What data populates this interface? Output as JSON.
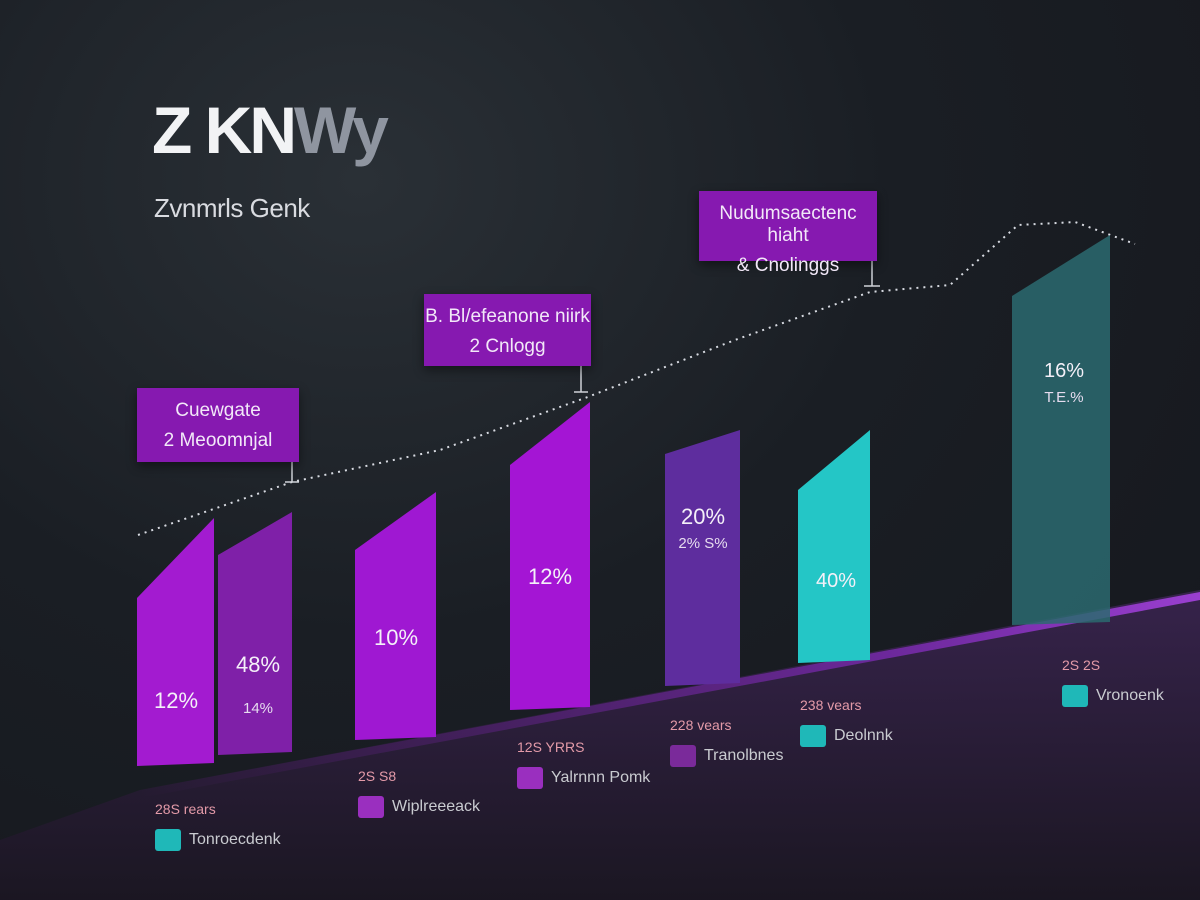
{
  "title": {
    "main": "Z KN",
    "accent": "Wy"
  },
  "subtitle": "Zvnmrls Genk",
  "callouts": [
    {
      "line1": "Cuewgate",
      "line2": "2 Meoomnjal"
    },
    {
      "line1": "B. Bl/efeanone niirk",
      "line2": "2 Cnlogg"
    },
    {
      "line1": "Nudumsaectenc hiaht",
      "line2": "& Cnolinggs"
    }
  ],
  "legends": [
    {
      "top": "28S rears",
      "label": "Tonroecdenk",
      "color": "#1fb8b8"
    },
    {
      "top": "2S S8",
      "label": "Wiplreeeack",
      "color": "#9a2fbf"
    },
    {
      "top": "12S YRRS",
      "label": "Yalrnnn Pomk",
      "color": "#9a2fbf"
    },
    {
      "top": "228 vears",
      "label": "Tranolbnes",
      "color": "#7a2a9a"
    },
    {
      "top": "238 vears",
      "label": "Deolnnk",
      "color": "#1fb8b8"
    },
    {
      "top": "2S 2S",
      "label": "Vronoenk",
      "color": "#1fb8b8"
    }
  ],
  "chart_data": {
    "type": "bar",
    "title": "Z KNWy",
    "subtitle": "Zvnmrls Genk",
    "series": [
      {
        "values": [
          12,
          48,
          10,
          12,
          20,
          40,
          16
        ],
        "labels": [
          "12%",
          "48%",
          "10%",
          "12%",
          "20%",
          "40%",
          "16%"
        ]
      }
    ],
    "secondary_labels": [
      "",
      "14%",
      "",
      "",
      "2% S%",
      "",
      "T.E.%"
    ],
    "bar_colors": [
      "#a31bd0",
      "#7f20a8",
      "#9f18d2",
      "#a415d4",
      "#5e2d9e",
      "#24c6c6",
      "#2c6a70"
    ],
    "trend_line": "dotted",
    "annotations": [
      "Cuewgate 2 Meoomnjal",
      "B. Bl/efeanone niirk 2 Cnlogg",
      "Nudumsaectenc hiaht & Cnolinggs"
    ],
    "grid": false
  }
}
